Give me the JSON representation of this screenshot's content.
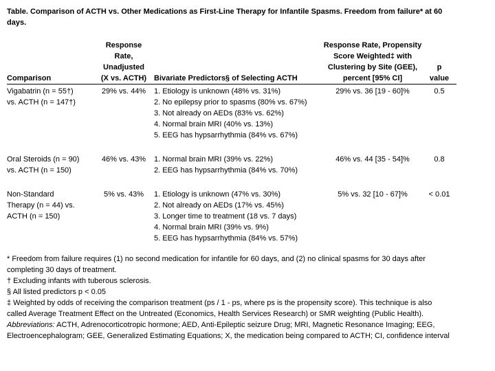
{
  "title": "Table.  Comparison of ACTH vs. Other Medications as First-Line Therapy for Infantile Spasms.  Freedom from failure* at 60 days.",
  "table": {
    "headers": [
      [
        "Comparison"
      ],
      [
        "Response",
        "Rate,",
        "Unadjusted",
        "(X vs. ACTH)"
      ],
      [
        "Bivariate Predictors§ of Selecting ACTH"
      ],
      [
        "Response Rate, Propensity",
        "Score Weighted‡ with",
        "Clustering by Site (GEE),",
        "percent [95% CI]"
      ],
      [
        "p",
        "value"
      ]
    ],
    "rows": [
      [
        [
          "Vigabatrin (n = 55†)",
          "vs. ACTH (n = 147†)"
        ],
        [
          "29% vs. 44%"
        ],
        [
          "1. Etiology is unknown (48% vs. 31%)",
          "2. No epilepsy prior to spasms (80% vs. 67%)",
          "3. Not already on AEDs (83% vs. 62%)",
          "4. Normal brain MRI (40% vs. 13%)",
          "5. EEG has hypsarrhythmia (84% vs. 67%)"
        ],
        [
          "29% vs. 36 [19 - 60]%"
        ],
        [
          "0.5"
        ]
      ],
      [
        [
          "Oral Steroids (n = 90)",
          "vs. ACTH (n = 150)"
        ],
        [
          "46% vs. 43%"
        ],
        [
          "1. Normal brain MRI (39% vs. 22%)",
          "2. EEG has hypsarrhythmia (84% vs. 70%)"
        ],
        [
          "46% vs. 44 [35 - 54]%"
        ],
        [
          "0.8"
        ]
      ],
      [
        [
          "Non-Standard",
          "Therapy (n = 44) vs.",
          "ACTH (n = 150)"
        ],
        [
          "5% vs. 43%"
        ],
        [
          "1. Etiology is unknown (47% vs. 30%)",
          "2. Not already on AEDs (17% vs. 45%)",
          "3. Longer time to treatment (18 vs. 7 days)",
          "4. Normal brain MRI (39% vs. 9%)",
          "5. EEG has hypsarrhythmia (84% vs. 57%)"
        ],
        [
          "5% vs. 32 [10 - 67]%"
        ],
        [
          "< 0.01"
        ]
      ]
    ]
  },
  "footnotes": [
    "* Freedom from failure requires (1) no second medication for infantile for 60 days, and (2) no clinical spasms for 30 days after completing 30 days of treatment.",
    "† Excluding infants with tuberous sclerosis.",
    "§ All listed predictors p < 0.05",
    "‡ Weighted by odds of receiving the comparison treatment (ps / 1 - ps, where ps is the propensity score). This technique is also called Average Treatment Effect on the Untreated (Economics, Health Services Research) or SMR weighting (Public Health)."
  ],
  "abbreviations": {
    "label": "Abbreviations:",
    "text": " ACTH, Adrenocorticotropic hormone; AED, Anti-Epileptic seizure Drug; MRI, Magnetic Resonance Imaging; EEG, Electroencephalogram; GEE, Generalized Estimating Equations; X, the medication being compared to ACTH; CI, confidence interval"
  }
}
